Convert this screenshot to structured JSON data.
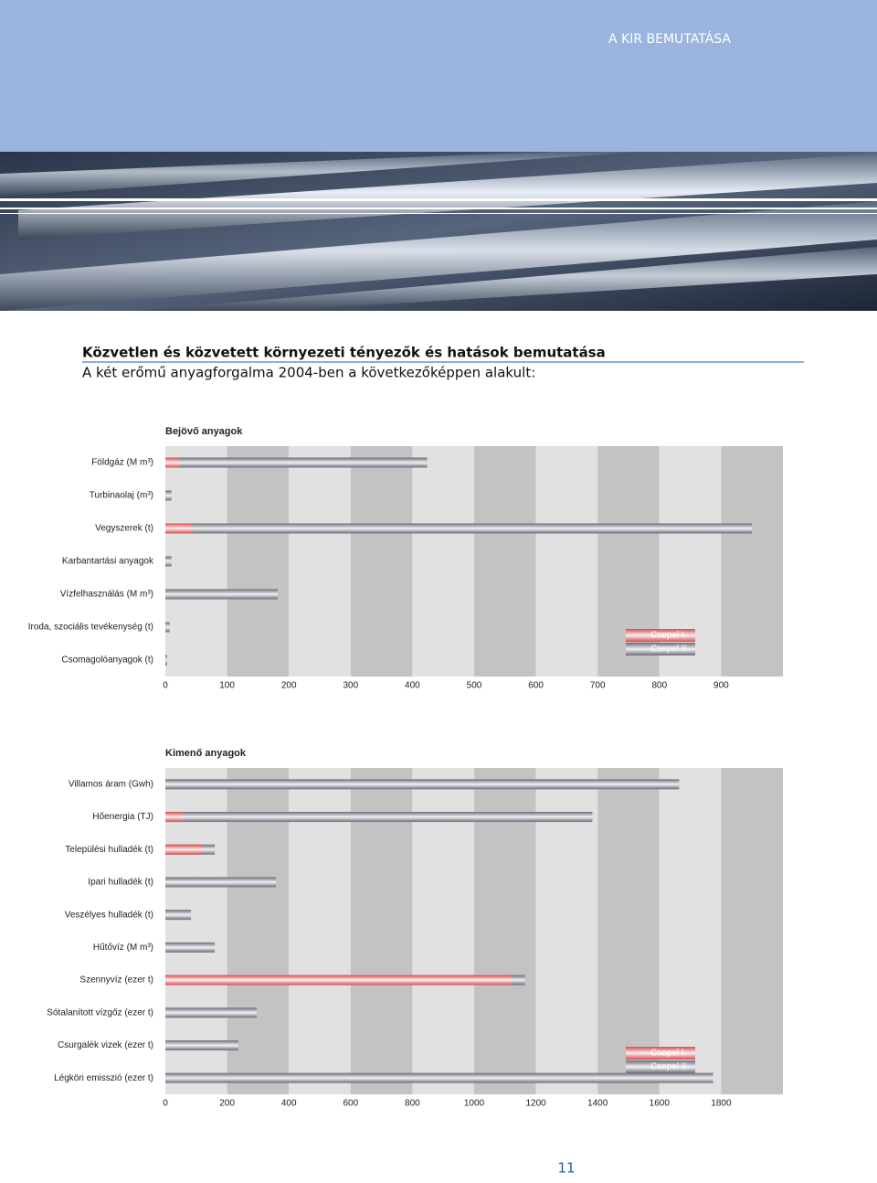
{
  "header": {
    "section": "A KIR BEMUTATÁSA"
  },
  "heading": "Közvetlen és közvetett környezeti tényezők és hatások bemutatása",
  "intro": "A két erőmű anyagforgalma 2004-ben a következőképpen alakult:",
  "page_number": "11",
  "chart_data": [
    {
      "type": "bar",
      "orientation": "horizontal",
      "title": "Bejövő anyagok",
      "categories": [
        "Földgáz (M m³)",
        "Turbinaolaj (m³)",
        "Vegyszerek (t)",
        "Karbantartási anyagok",
        "Vízfelhasználás (M m³)",
        "Iroda, szociális tevékenység (t)",
        "Csomagolóanyagok (t)"
      ],
      "series": [
        {
          "name": "Csepel II.",
          "color": "#6b6b7a",
          "values": [
            424,
            10,
            950,
            10,
            182,
            7,
            3
          ]
        },
        {
          "name": "Csepel I.",
          "color": "#e0474a",
          "values": [
            22,
            0,
            44,
            0,
            0,
            0,
            0
          ]
        }
      ],
      "xlim": [
        0,
        1000
      ],
      "xticks": [
        0,
        100,
        200,
        300,
        400,
        500,
        600,
        700,
        800,
        900
      ],
      "legend": "lower right"
    },
    {
      "type": "bar",
      "orientation": "horizontal",
      "title": "Kimenő anyagok",
      "categories": [
        "Villamos áram (Gwh)",
        "Hőenergia (TJ)",
        "Települési hulladék (t)",
        "Ipari hulladék (t)",
        "Veszélyes hulladék (t)",
        "Hűtővíz (M m³)",
        "Szennyvíz (ezer t)",
        "Sótalanított vízgőz (ezer t)",
        "Csurgalék vizek (ezer t)",
        "Légköri emisszió (ezer t)"
      ],
      "series": [
        {
          "name": "Csepel II.",
          "color": "#6b6b7a",
          "values": [
            1664,
            1383,
            160,
            358,
            83,
            160,
            1165,
            296,
            236,
            1774
          ]
        },
        {
          "name": "Csepel I.",
          "color": "#e0474a",
          "values": [
            0,
            56,
            121,
            0,
            0,
            0,
            1120,
            0,
            0,
            0
          ]
        }
      ],
      "xlim": [
        0,
        2000
      ],
      "xticks": [
        0,
        200,
        400,
        600,
        800,
        1000,
        1200,
        1400,
        1600,
        1800
      ],
      "legend": "lower right"
    }
  ]
}
